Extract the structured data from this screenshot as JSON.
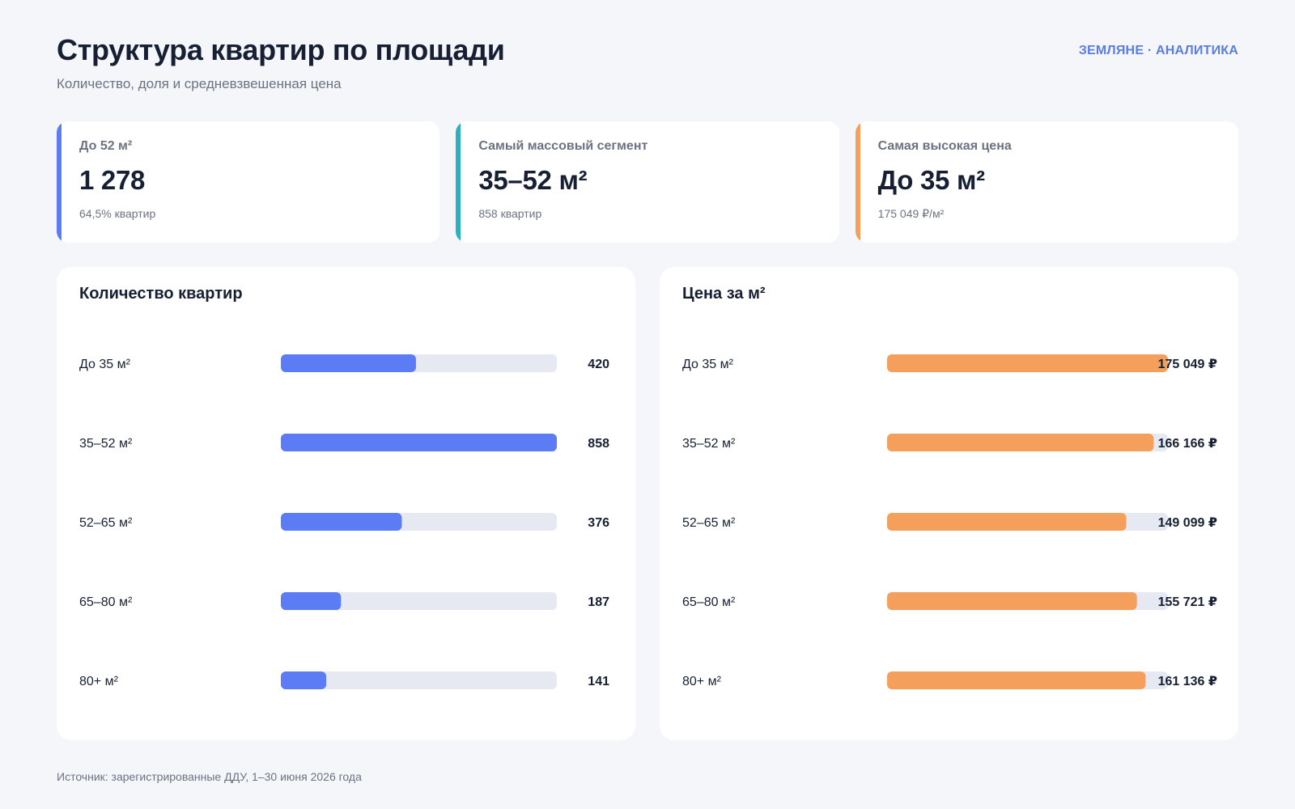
{
  "header": {
    "title": "Структура квартир по площади",
    "subtitle": "Количество, доля и средневзвешенная цена",
    "brand": "ЗЕМЛЯНЕ · АНАЛИТИКА"
  },
  "kpis": [
    {
      "label": "До 52 м²",
      "value": "1 278",
      "note": "64,5% квартир",
      "accent": "#5b7cf5"
    },
    {
      "label": "Самый массовый сегмент",
      "value": "35–52 м²",
      "note": "858 квартир",
      "accent": "#2bb0bd"
    },
    {
      "label": "Самая высокая цена",
      "value": "До 35 м²",
      "note": "175 049 ₽/м²",
      "accent": "#f4a05c"
    }
  ],
  "chart_data": [
    {
      "type": "bar",
      "orientation": "horizontal",
      "title": "Количество квартир",
      "categories": [
        "До 35 м²",
        "35–52 м²",
        "52–65 м²",
        "65–80 м²",
        "80+ м²"
      ],
      "values": [
        420,
        858,
        376,
        187,
        141
      ],
      "value_labels": [
        "420",
        "858",
        "376",
        "187",
        "141"
      ],
      "xlim": [
        0,
        858
      ],
      "color": "#5b7cf5",
      "track_color": "#e6e9f1"
    },
    {
      "type": "bar",
      "orientation": "horizontal",
      "title": "Цена за м²",
      "categories": [
        "До 35 м²",
        "35–52 м²",
        "52–65 м²",
        "65–80 м²",
        "80+ м²"
      ],
      "values": [
        175049,
        166166,
        149099,
        155721,
        161136
      ],
      "value_labels": [
        "175 049 ₽",
        "166 166 ₽",
        "149 099 ₽",
        "155 721 ₽",
        "161 136 ₽"
      ],
      "xlim": [
        0,
        175049
      ],
      "color": "#f4a05c",
      "track_color": "#e6e9f1"
    }
  ],
  "footer": {
    "source": "Источник: зарегистрированные ДДУ, 1–30 июня 2026 года"
  }
}
